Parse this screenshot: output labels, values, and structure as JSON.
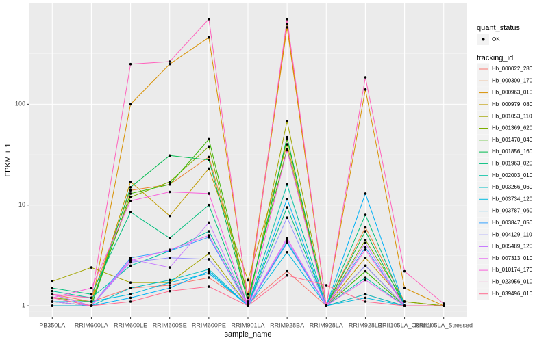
{
  "chart_data": {
    "type": "line",
    "x_label": "sample_name",
    "y_label": "FPKM + 1",
    "log_y": true,
    "grid": true,
    "ylim": [
      0.78,
      1000
    ],
    "yticks": [
      1,
      10,
      100
    ],
    "categories": [
      "PB350LA",
      "RRIM600LA",
      "RRIM600LE",
      "RRIM600SE",
      "RRIM600PE",
      "RRIM901LA",
      "RRIM928BA",
      "RRIM928LA",
      "RRIM928LE",
      "RRII105LA_Control",
      "RRII105LA_Stressed"
    ],
    "point_legend_title": "quant_status",
    "point_legend_label": "OK",
    "legend_title": "tracking_id",
    "series": [
      {
        "name": "Hb_000022_280",
        "color": "#F8766D",
        "values": [
          1.3,
          1.1,
          1.5,
          1.6,
          1.9,
          1.05,
          2.2,
          1.0,
          1.3,
          1.0,
          1.0
        ]
      },
      {
        "name": "Hb_000300_170",
        "color": "#EA8331",
        "values": [
          1.2,
          1.2,
          14,
          16,
          30,
          1.3,
          620,
          1.0,
          6.0,
          1.1,
          1.0
        ]
      },
      {
        "name": "Hb_000963_010",
        "color": "#D89000",
        "values": [
          1.0,
          1.0,
          100,
          250,
          460,
          1.2,
          580,
          1.0,
          140,
          1.5,
          1.0
        ]
      },
      {
        "name": "Hb_000979_080",
        "color": "#C09B00",
        "values": [
          1.1,
          1.0,
          17,
          7.8,
          23,
          1.8,
          40,
          1.0,
          3.0,
          1.1,
          1.0
        ]
      },
      {
        "name": "Hb_001053_110",
        "color": "#A3A500",
        "values": [
          1.75,
          2.4,
          1.7,
          1.7,
          3.3,
          1.0,
          68,
          1.0,
          2.5,
          1.0,
          1.0
        ]
      },
      {
        "name": "Hb_001369_620",
        "color": "#7CAE00",
        "values": [
          1.2,
          1.1,
          12,
          17,
          38,
          1.1,
          45,
          1.0,
          4.5,
          1.1,
          1.0
        ]
      },
      {
        "name": "Hb_001470_040",
        "color": "#39B600",
        "values": [
          1.1,
          1.0,
          13,
          16,
          45,
          1.2,
          36,
          1.0,
          2.2,
          1.0,
          1.0
        ]
      },
      {
        "name": "Hb_001856_160",
        "color": "#00BB4E",
        "values": [
          1.0,
          1.0,
          15,
          31,
          28,
          1.1,
          47,
          1.0,
          5.5,
          1.0,
          1.0
        ]
      },
      {
        "name": "Hb_001963_020",
        "color": "#00BF7D",
        "values": [
          1.5,
          1.3,
          8.5,
          4.7,
          10,
          1.0,
          9.5,
          1.0,
          8.0,
          1.0,
          1.0
        ]
      },
      {
        "name": "Hb_002003_010",
        "color": "#00C1A3",
        "values": [
          1.4,
          1.2,
          2.5,
          3.5,
          5.5,
          1.0,
          16,
          1.0,
          1.9,
          1.0,
          1.0
        ]
      },
      {
        "name": "Hb_003266_060",
        "color": "#00BFC4",
        "values": [
          1.3,
          1.0,
          1.5,
          1.8,
          2.3,
          1.0,
          4.3,
          1.0,
          1.3,
          1.0,
          1.0
        ]
      },
      {
        "name": "Hb_003734_120",
        "color": "#00BAE0",
        "values": [
          1.1,
          1.1,
          1.3,
          1.7,
          2.1,
          1.0,
          3.4,
          1.0,
          1.2,
          1.0,
          1.0
        ]
      },
      {
        "name": "Hb_003787_060",
        "color": "#00B0F6",
        "values": [
          1.0,
          1.0,
          1.2,
          1.5,
          2.2,
          1.0,
          11.5,
          1.0,
          13,
          1.0,
          1.0
        ]
      },
      {
        "name": "Hb_003847_050",
        "color": "#35A2FF",
        "values": [
          1.1,
          1.0,
          3.0,
          3.5,
          4.8,
          1.0,
          4.2,
          1.0,
          3.8,
          1.0,
          1.0
        ]
      },
      {
        "name": "Hb_004129_110",
        "color": "#9590FF",
        "values": [
          1.2,
          1.0,
          2.7,
          3.0,
          2.9,
          1.0,
          7.5,
          1.0,
          2.5,
          1.0,
          1.0
        ]
      },
      {
        "name": "Hb_005489_120",
        "color": "#C77CFF",
        "values": [
          1.1,
          1.0,
          2.9,
          2.4,
          6.7,
          1.0,
          4.5,
          1.0,
          4.2,
          1.0,
          1.0
        ]
      },
      {
        "name": "Hb_007313_010",
        "color": "#E76BF3",
        "values": [
          1.3,
          1.0,
          2.8,
          3.6,
          5.0,
          1.0,
          4.7,
          1.0,
          1.8,
          1.0,
          1.0
        ]
      },
      {
        "name": "Hb_010174_170",
        "color": "#FA62DB",
        "values": [
          1.2,
          1.5,
          11,
          13.5,
          13,
          1.0,
          35,
          1.0,
          3.6,
          1.0,
          1.0
        ]
      },
      {
        "name": "Hb_023956_010",
        "color": "#FF62BC",
        "values": [
          1.3,
          1.2,
          250,
          265,
          700,
          1.1,
          700,
          1.0,
          185,
          2.2,
          1.05
        ]
      },
      {
        "name": "Hb_039496_010",
        "color": "#FF6C91",
        "values": [
          1.2,
          1.0,
          1.1,
          1.4,
          1.55,
          1.0,
          2.0,
          1.6,
          1.1,
          1.0,
          1.0
        ]
      }
    ]
  }
}
